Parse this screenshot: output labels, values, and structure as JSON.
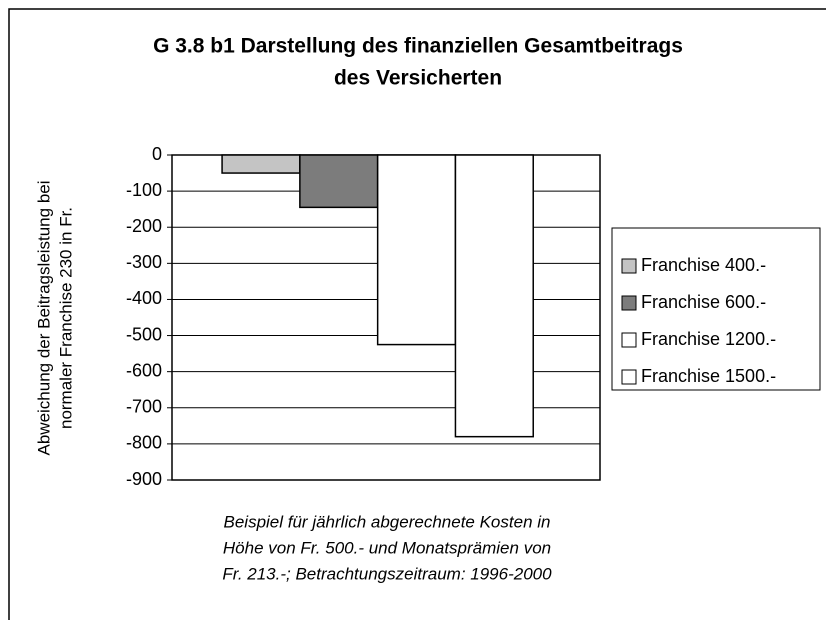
{
  "chart_data": {
    "type": "bar",
    "title": [
      "G 3.8 b1 Darstellung des finanziellen Gesamtbeitrags",
      "des Versicherten"
    ],
    "y_label": [
      "Abweichung der Beitragsleistung bei",
      "normaler Franchise 230 in Fr."
    ],
    "x_label": [
      "Beispiel für jährlich abgerechnete Kosten in",
      "Höhe von Fr. 500.- und Monatsprämien von",
      "Fr. 213.-; Betrachtungszeitraum: 1996-2000"
    ],
    "categories": [
      null
    ],
    "series": [
      {
        "name": "Franchise 400.-",
        "color": "#c4c4c4",
        "values": [
          -50
        ]
      },
      {
        "name": "Franchise 600.-",
        "color": "#7c7c7c",
        "values": [
          -145
        ]
      },
      {
        "name": "Franchise 1200.-",
        "color": "#ffffff",
        "values": [
          -525
        ]
      },
      {
        "name": "Franchise 1500.-",
        "color": "#ffffff",
        "values": [
          -780
        ]
      }
    ],
    "ylim": [
      -900,
      0
    ],
    "yticks": [
      0,
      -100,
      -200,
      -300,
      -400,
      -500,
      -600,
      -700,
      -800,
      -900
    ],
    "grid": true,
    "legend": "right"
  }
}
